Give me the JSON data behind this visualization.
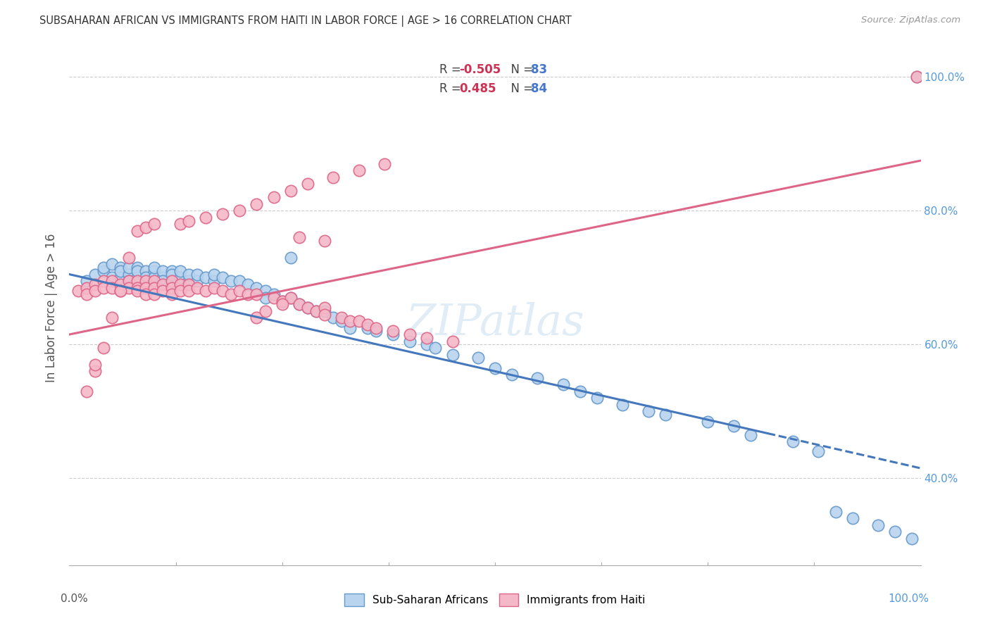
{
  "title": "SUBSAHARAN AFRICAN VS IMMIGRANTS FROM HAITI IN LABOR FORCE | AGE > 16 CORRELATION CHART",
  "source": "Source: ZipAtlas.com",
  "ylabel": "In Labor Force | Age > 16",
  "watermark": "ZIPatlas",
  "color_blue_face": "#b8d4ee",
  "color_blue_edge": "#6699cc",
  "color_pink_face": "#f5b8c8",
  "color_pink_edge": "#dd6688",
  "color_line_blue": "#4477bb",
  "color_line_pink": "#dd6688",
  "color_grid": "#cccccc",
  "color_right_tick": "#5599dd",
  "blue_line_x0": 0.0,
  "blue_line_y0": 0.705,
  "blue_line_x1": 1.0,
  "blue_line_y1": 0.415,
  "blue_line_solid_end": 0.82,
  "pink_line_x0": 0.0,
  "pink_line_y0": 0.615,
  "pink_line_x1": 1.0,
  "pink_line_y1": 0.875,
  "ylim_min": 0.27,
  "ylim_max": 1.04,
  "xlim_min": 0.0,
  "xlim_max": 1.0,
  "yticks": [
    0.4,
    0.6,
    0.8,
    1.0
  ],
  "ytick_labels": [
    "40.0%",
    "60.0%",
    "80.0%",
    "100.0%"
  ],
  "blue_x": [
    0.02,
    0.03,
    0.04,
    0.04,
    0.05,
    0.05,
    0.06,
    0.06,
    0.06,
    0.07,
    0.07,
    0.07,
    0.08,
    0.08,
    0.08,
    0.09,
    0.09,
    0.09,
    0.1,
    0.1,
    0.1,
    0.1,
    0.11,
    0.11,
    0.11,
    0.12,
    0.12,
    0.12,
    0.13,
    0.13,
    0.14,
    0.14,
    0.15,
    0.15,
    0.16,
    0.17,
    0.17,
    0.18,
    0.19,
    0.2,
    0.21,
    0.22,
    0.23,
    0.23,
    0.24,
    0.25,
    0.26,
    0.27,
    0.28,
    0.29,
    0.3,
    0.31,
    0.32,
    0.33,
    0.35,
    0.36,
    0.38,
    0.4,
    0.42,
    0.43,
    0.45,
    0.48,
    0.5,
    0.52,
    0.55,
    0.58,
    0.6,
    0.62,
    0.65,
    0.68,
    0.7,
    0.75,
    0.78,
    0.8,
    0.85,
    0.88,
    0.9,
    0.92,
    0.95,
    0.97,
    0.99,
    0.26,
    0.995
  ],
  "blue_y": [
    0.695,
    0.705,
    0.71,
    0.715,
    0.72,
    0.7,
    0.715,
    0.7,
    0.71,
    0.705,
    0.715,
    0.695,
    0.715,
    0.7,
    0.71,
    0.71,
    0.695,
    0.7,
    0.71,
    0.695,
    0.7,
    0.715,
    0.7,
    0.71,
    0.695,
    0.71,
    0.695,
    0.705,
    0.7,
    0.71,
    0.695,
    0.705,
    0.695,
    0.705,
    0.7,
    0.695,
    0.705,
    0.7,
    0.695,
    0.695,
    0.69,
    0.685,
    0.68,
    0.67,
    0.675,
    0.665,
    0.67,
    0.66,
    0.655,
    0.65,
    0.65,
    0.64,
    0.635,
    0.625,
    0.625,
    0.62,
    0.615,
    0.605,
    0.6,
    0.595,
    0.585,
    0.58,
    0.565,
    0.555,
    0.55,
    0.54,
    0.53,
    0.52,
    0.51,
    0.5,
    0.495,
    0.485,
    0.478,
    0.465,
    0.455,
    0.44,
    0.35,
    0.34,
    0.33,
    0.32,
    0.31,
    0.73,
    1.0
  ],
  "pink_x": [
    0.01,
    0.02,
    0.02,
    0.03,
    0.03,
    0.04,
    0.04,
    0.05,
    0.05,
    0.06,
    0.06,
    0.07,
    0.07,
    0.08,
    0.08,
    0.08,
    0.09,
    0.09,
    0.09,
    0.1,
    0.1,
    0.1,
    0.11,
    0.11,
    0.12,
    0.12,
    0.12,
    0.13,
    0.13,
    0.14,
    0.14,
    0.15,
    0.16,
    0.17,
    0.18,
    0.19,
    0.2,
    0.21,
    0.22,
    0.24,
    0.25,
    0.26,
    0.27,
    0.28,
    0.29,
    0.3,
    0.3,
    0.32,
    0.33,
    0.34,
    0.35,
    0.36,
    0.38,
    0.4,
    0.42,
    0.45,
    0.27,
    0.3,
    0.22,
    0.23,
    0.25,
    0.08,
    0.09,
    0.1,
    0.07,
    0.06,
    0.05,
    0.04,
    0.03,
    0.03,
    0.02,
    0.13,
    0.14,
    0.16,
    0.18,
    0.2,
    0.22,
    0.24,
    0.26,
    0.28,
    0.31,
    0.34,
    0.37,
    0.995
  ],
  "pink_y": [
    0.68,
    0.685,
    0.675,
    0.69,
    0.68,
    0.695,
    0.685,
    0.695,
    0.685,
    0.69,
    0.68,
    0.695,
    0.685,
    0.695,
    0.685,
    0.68,
    0.695,
    0.685,
    0.675,
    0.695,
    0.685,
    0.675,
    0.69,
    0.68,
    0.695,
    0.685,
    0.675,
    0.69,
    0.68,
    0.69,
    0.68,
    0.685,
    0.68,
    0.685,
    0.68,
    0.675,
    0.68,
    0.675,
    0.675,
    0.67,
    0.665,
    0.67,
    0.66,
    0.655,
    0.65,
    0.655,
    0.645,
    0.64,
    0.635,
    0.635,
    0.63,
    0.625,
    0.62,
    0.615,
    0.61,
    0.605,
    0.76,
    0.755,
    0.64,
    0.65,
    0.66,
    0.77,
    0.775,
    0.78,
    0.73,
    0.68,
    0.64,
    0.595,
    0.56,
    0.57,
    0.53,
    0.78,
    0.785,
    0.79,
    0.795,
    0.8,
    0.81,
    0.82,
    0.83,
    0.84,
    0.85,
    0.86,
    0.87,
    1.0
  ]
}
